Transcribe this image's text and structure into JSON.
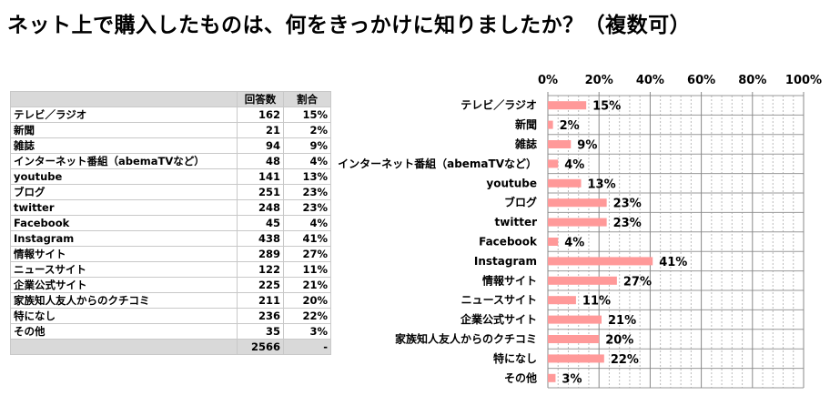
{
  "title": "ネット上で購入したものは、何をきっかけに知りましたか？（複数可）",
  "table": {
    "headers": [
      "",
      "回答数",
      "割合"
    ],
    "rows": [
      [
        "テレビ／ラジオ",
        "162",
        "15%"
      ],
      [
        "新聞",
        "21",
        "2%"
      ],
      [
        "雑誌",
        "94",
        "9%"
      ],
      [
        "インターネット番組（abemaTVなど）",
        "48",
        "4%"
      ],
      [
        "youtube",
        "141",
        "13%"
      ],
      [
        "ブログ",
        "251",
        "23%"
      ],
      [
        "twitter",
        "248",
        "23%"
      ],
      [
        "Facebook",
        "45",
        "4%"
      ],
      [
        "Instagram",
        "438",
        "41%"
      ],
      [
        "情報サイト",
        "289",
        "27%"
      ],
      [
        "ニュースサイト",
        "122",
        "11%"
      ],
      [
        "企業公式サイト",
        "225",
        "21%"
      ],
      [
        "家族知人友人からのクチコミ",
        "211",
        "20%"
      ],
      [
        "特になし",
        "236",
        "22%"
      ],
      [
        "その他",
        "35",
        "3%"
      ]
    ],
    "total": [
      "",
      "2566",
      "-"
    ]
  },
  "chart_data": {
    "type": "bar",
    "orientation": "horizontal",
    "categories": [
      "テレビ／ラジオ",
      "新聞",
      "雑誌",
      "インターネット番組（abemaTVなど）",
      "youtube",
      "ブログ",
      "twitter",
      "Facebook",
      "Instagram",
      "情報サイト",
      "ニュースサイト",
      "企業公式サイト",
      "家族知人友人からのクチコミ",
      "特になし",
      "その他"
    ],
    "values": [
      15,
      2,
      9,
      4,
      13,
      23,
      23,
      4,
      41,
      27,
      11,
      21,
      20,
      22,
      3
    ],
    "data_labels": [
      "15%",
      "2%",
      "9%",
      "4%",
      "13%",
      "23%",
      "23%",
      "4%",
      "41%",
      "27%",
      "11%",
      "21%",
      "20%",
      "22%",
      "3%"
    ],
    "xlim": [
      0,
      100
    ],
    "xticks": [
      "0%",
      "20%",
      "40%",
      "60%",
      "80%",
      "100%"
    ],
    "xaxis_position": "top",
    "grid": true,
    "bar_color": "#ff9999"
  }
}
